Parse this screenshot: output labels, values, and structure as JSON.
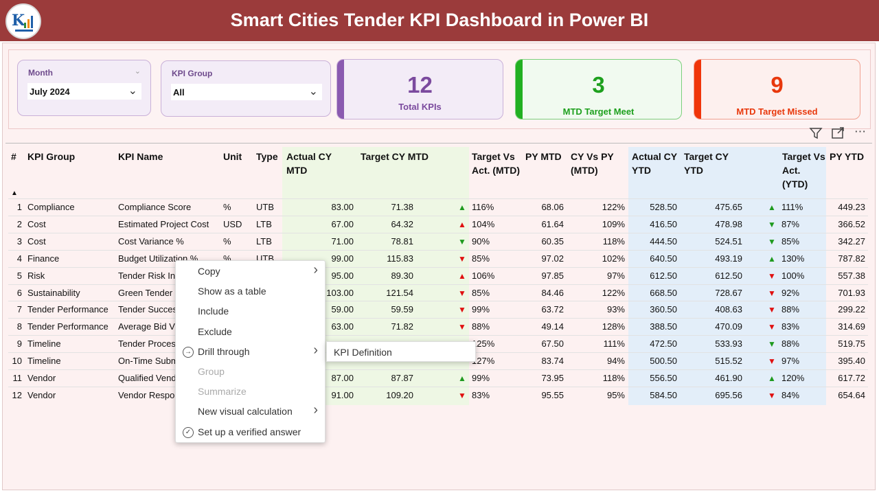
{
  "header": {
    "title": "Smart Cities Tender KPI Dashboard in Power BI"
  },
  "slicers": {
    "month": {
      "label": "Month",
      "value": "July 2024"
    },
    "kpi_group": {
      "label": "KPI Group",
      "value": "All"
    }
  },
  "cards": [
    {
      "value": "12",
      "label": "Total KPIs",
      "color": "#7b4a9e"
    },
    {
      "value": "3",
      "label": "MTD Target Meet",
      "color": "#1ea01e"
    },
    {
      "value": "9",
      "label": "MTD Target Missed",
      "color": "#e8380c"
    }
  ],
  "table": {
    "headers": [
      "#",
      "KPI Group",
      "KPI Name",
      "Unit",
      "Type",
      "Actual CY MTD",
      "Target CY MTD",
      "Target Vs Act. (MTD)",
      "PY MTD",
      "CY Vs PY (MTD)",
      "Actual CY YTD",
      "Target CY YTD",
      "Target Vs Act. (YTD)",
      "PY YTD"
    ],
    "rows": [
      {
        "n": "1",
        "group": "Compliance",
        "name": "Compliance Score",
        "unit": "%",
        "type": "UTB",
        "acy_mtd": "83.00",
        "tcy_mtd": "71.38",
        "mtd_dir": "up",
        "mtd_color": "green",
        "tva_mtd": "116%",
        "py_mtd": "68.06",
        "cvp_mtd": "122%",
        "acy_ytd": "528.50",
        "tcy_ytd": "475.65",
        "ytd_dir": "up",
        "ytd_color": "green",
        "tva_ytd": "111%",
        "py_ytd": "449.23"
      },
      {
        "n": "2",
        "group": "Cost",
        "name": "Estimated Project Cost",
        "unit": "USD",
        "type": "LTB",
        "acy_mtd": "67.00",
        "tcy_mtd": "64.32",
        "mtd_dir": "up",
        "mtd_color": "red",
        "tva_mtd": "104%",
        "py_mtd": "61.64",
        "cvp_mtd": "109%",
        "acy_ytd": "416.50",
        "tcy_ytd": "478.98",
        "ytd_dir": "down",
        "ytd_color": "green",
        "tva_ytd": "87%",
        "py_ytd": "366.52"
      },
      {
        "n": "3",
        "group": "Cost",
        "name": "Cost Variance %",
        "unit": "%",
        "type": "LTB",
        "acy_mtd": "71.00",
        "tcy_mtd": "78.81",
        "mtd_dir": "down",
        "mtd_color": "green",
        "tva_mtd": "90%",
        "py_mtd": "60.35",
        "cvp_mtd": "118%",
        "acy_ytd": "444.50",
        "tcy_ytd": "524.51",
        "ytd_dir": "down",
        "ytd_color": "green",
        "tva_ytd": "85%",
        "py_ytd": "342.27"
      },
      {
        "n": "4",
        "group": "Finance",
        "name": "Budget Utilization %",
        "unit": "%",
        "type": "UTB",
        "acy_mtd": "99.00",
        "tcy_mtd": "115.83",
        "mtd_dir": "down",
        "mtd_color": "red",
        "tva_mtd": "85%",
        "py_mtd": "97.02",
        "cvp_mtd": "102%",
        "acy_ytd": "640.50",
        "tcy_ytd": "493.19",
        "ytd_dir": "up",
        "ytd_color": "green",
        "tva_ytd": "130%",
        "py_ytd": "787.82"
      },
      {
        "n": "5",
        "group": "Risk",
        "name": "Tender Risk In",
        "unit": "",
        "type": "",
        "acy_mtd": "95.00",
        "tcy_mtd": "89.30",
        "mtd_dir": "up",
        "mtd_color": "red",
        "tva_mtd": "106%",
        "py_mtd": "97.85",
        "cvp_mtd": "97%",
        "acy_ytd": "612.50",
        "tcy_ytd": "612.50",
        "ytd_dir": "down",
        "ytd_color": "red",
        "tva_ytd": "100%",
        "py_ytd": "557.38"
      },
      {
        "n": "6",
        "group": "Sustainability",
        "name": "Green Tender",
        "unit": "",
        "type": "",
        "acy_mtd": "103.00",
        "tcy_mtd": "121.54",
        "mtd_dir": "down",
        "mtd_color": "red",
        "tva_mtd": "85%",
        "py_mtd": "84.46",
        "cvp_mtd": "122%",
        "acy_ytd": "668.50",
        "tcy_ytd": "728.67",
        "ytd_dir": "down",
        "ytd_color": "red",
        "tva_ytd": "92%",
        "py_ytd": "701.93"
      },
      {
        "n": "7",
        "group": "Tender Performance",
        "name": "Tender Succes",
        "unit": "",
        "type": "",
        "acy_mtd": "59.00",
        "tcy_mtd": "59.59",
        "mtd_dir": "down",
        "mtd_color": "red",
        "tva_mtd": "99%",
        "py_mtd": "63.72",
        "cvp_mtd": "93%",
        "acy_ytd": "360.50",
        "tcy_ytd": "408.63",
        "ytd_dir": "down",
        "ytd_color": "red",
        "tva_ytd": "88%",
        "py_ytd": "299.22"
      },
      {
        "n": "8",
        "group": "Tender Performance",
        "name": "Average Bid V",
        "unit": "",
        "type": "",
        "acy_mtd": "63.00",
        "tcy_mtd": "71.82",
        "mtd_dir": "down",
        "mtd_color": "red",
        "tva_mtd": "88%",
        "py_mtd": "49.14",
        "cvp_mtd": "128%",
        "acy_ytd": "388.50",
        "tcy_ytd": "470.09",
        "ytd_dir": "down",
        "ytd_color": "red",
        "tva_ytd": "83%",
        "py_ytd": "314.69"
      },
      {
        "n": "9",
        "group": "Timeline",
        "name": "Tender Proces",
        "unit": "",
        "type": "",
        "acy_mtd": "",
        "tcy_mtd": "",
        "mtd_dir": "",
        "mtd_color": "",
        "tva_mtd": "125%",
        "py_mtd": "67.50",
        "cvp_mtd": "111%",
        "acy_ytd": "472.50",
        "tcy_ytd": "533.93",
        "ytd_dir": "down",
        "ytd_color": "green",
        "tva_ytd": "88%",
        "py_ytd": "519.75"
      },
      {
        "n": "10",
        "group": "Timeline",
        "name": "On-Time Subm",
        "unit": "",
        "type": "",
        "acy_mtd": "",
        "tcy_mtd": "",
        "mtd_dir": "",
        "mtd_color": "",
        "tva_mtd": "127%",
        "py_mtd": "83.74",
        "cvp_mtd": "94%",
        "acy_ytd": "500.50",
        "tcy_ytd": "515.52",
        "ytd_dir": "down",
        "ytd_color": "red",
        "tva_ytd": "97%",
        "py_ytd": "395.40"
      },
      {
        "n": "11",
        "group": "Vendor",
        "name": "Qualified Vend",
        "unit": "",
        "type": "",
        "acy_mtd": "87.00",
        "tcy_mtd": "87.87",
        "mtd_dir": "up",
        "mtd_color": "green",
        "tva_mtd": "99%",
        "py_mtd": "73.95",
        "cvp_mtd": "118%",
        "acy_ytd": "556.50",
        "tcy_ytd": "461.90",
        "ytd_dir": "up",
        "ytd_color": "green",
        "tva_ytd": "120%",
        "py_ytd": "617.72"
      },
      {
        "n": "12",
        "group": "Vendor",
        "name": "Vendor Respo",
        "unit": "",
        "type": "",
        "acy_mtd": "91.00",
        "tcy_mtd": "109.20",
        "mtd_dir": "down",
        "mtd_color": "red",
        "tva_mtd": "83%",
        "py_mtd": "95.55",
        "cvp_mtd": "95%",
        "acy_ytd": "584.50",
        "tcy_ytd": "695.56",
        "ytd_dir": "down",
        "ytd_color": "red",
        "tva_ytd": "84%",
        "py_ytd": "654.64"
      }
    ]
  },
  "context_menu": {
    "items": [
      {
        "label": "Copy",
        "icon": "",
        "submenu": true,
        "disabled": false
      },
      {
        "label": "Show as a table",
        "icon": "",
        "submenu": false,
        "disabled": false
      },
      {
        "label": "Include",
        "icon": "",
        "submenu": false,
        "disabled": false
      },
      {
        "label": "Exclude",
        "icon": "",
        "submenu": false,
        "disabled": false
      },
      {
        "label": "Drill through",
        "icon": "drill-through-icon",
        "submenu": true,
        "disabled": false
      },
      {
        "label": "Group",
        "icon": "",
        "submenu": false,
        "disabled": true
      },
      {
        "label": "Summarize",
        "icon": "",
        "submenu": false,
        "disabled": true
      },
      {
        "label": "New visual calculation",
        "icon": "",
        "submenu": true,
        "disabled": false
      },
      {
        "label": "Set up a verified answer",
        "icon": "verified-check-icon",
        "submenu": false,
        "disabled": false
      }
    ],
    "submenu_item": "KPI Definition"
  },
  "colors": {
    "header_bg": "#9b3b3b",
    "green": "#1e9a1e",
    "red": "#e01010",
    "mtd_band": "#eef7e4",
    "ytd_band": "#e3eef9"
  }
}
